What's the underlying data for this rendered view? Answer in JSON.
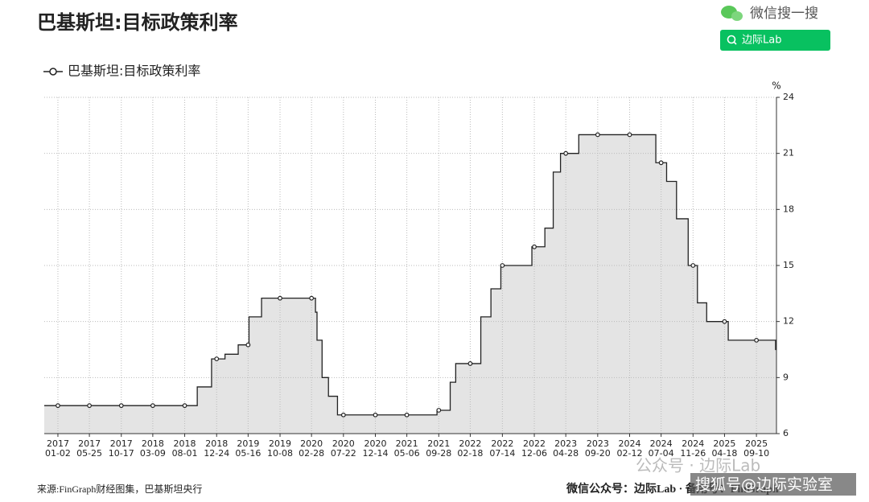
{
  "header": {
    "brand": "微信搜一搜",
    "search_button": "边际Lab"
  },
  "chart_data": {
    "type": "line",
    "step": true,
    "title": "巴基斯坦:目标政策利率",
    "y_unit_label": "%",
    "x": [
      "2016-11-01",
      "2018-09-27",
      "2018-12-01",
      "2019-01-31",
      "2019-04-01",
      "2019-05-20",
      "2019-07-16",
      "2020-03-17",
      "2020-03-24",
      "2020-04-16",
      "2020-05-15",
      "2020-06-25",
      "2021-09-20",
      "2021-11-19",
      "2021-12-14",
      "2022-04-07",
      "2022-05-23",
      "2022-07-07",
      "2022-11-25",
      "2023-01-23",
      "2023-03-02",
      "2023-04-04",
      "2023-06-26",
      "2024-06-10",
      "2024-07-29",
      "2024-09-12",
      "2024-11-04",
      "2024-12-16",
      "2025-01-27",
      "2025-05-05",
      "2025-12-06"
    ],
    "series": [
      {
        "name": "巴基斯坦:目标政策利率",
        "color": "#222222",
        "fill": "#e4e4e4",
        "values": [
          7.5,
          8.5,
          10,
          10.25,
          10.75,
          12.25,
          13.25,
          12.5,
          11,
          9,
          8,
          7,
          7.25,
          8.75,
          9.75,
          12.25,
          13.75,
          15,
          16,
          17,
          20,
          21,
          22,
          20.5,
          19.5,
          17.5,
          15,
          13,
          12,
          11,
          10.5
        ]
      }
    ],
    "xlim": [
      "2016-11-01",
      "2025-12-10"
    ],
    "xticks": [
      {
        "value": "2017-01-02",
        "label": [
          "2017",
          "01-02"
        ]
      },
      {
        "value": "2017-05-25",
        "label": [
          "2017",
          "05-25"
        ]
      },
      {
        "value": "2017-10-17",
        "label": [
          "2017",
          "10-17"
        ]
      },
      {
        "value": "2018-03-09",
        "label": [
          "2018",
          "03-09"
        ]
      },
      {
        "value": "2018-08-01",
        "label": [
          "2018",
          "08-01"
        ]
      },
      {
        "value": "2018-12-24",
        "label": [
          "2018",
          "12-24"
        ]
      },
      {
        "value": "2019-05-16",
        "label": [
          "2019",
          "05-16"
        ]
      },
      {
        "value": "2019-10-08",
        "label": [
          "2019",
          "10-08"
        ]
      },
      {
        "value": "2020-02-28",
        "label": [
          "2020",
          "02-28"
        ]
      },
      {
        "value": "2020-07-22",
        "label": [
          "2020",
          "07-22"
        ]
      },
      {
        "value": "2020-12-14",
        "label": [
          "2020",
          "12-14"
        ]
      },
      {
        "value": "2021-05-06",
        "label": [
          "2021",
          "05-06"
        ]
      },
      {
        "value": "2021-09-28",
        "label": [
          "2021",
          "09-28"
        ]
      },
      {
        "value": "2022-02-18",
        "label": [
          "2022",
          "02-18"
        ]
      },
      {
        "value": "2022-07-14",
        "label": [
          "2022",
          "07-14"
        ]
      },
      {
        "value": "2022-12-06",
        "label": [
          "2022",
          "12-06"
        ]
      },
      {
        "value": "2023-04-28",
        "label": [
          "2023",
          "04-28"
        ]
      },
      {
        "value": "2023-09-20",
        "label": [
          "2023",
          "09-20"
        ]
      },
      {
        "value": "2024-02-12",
        "label": [
          "2024",
          "02-12"
        ]
      },
      {
        "value": "2024-07-04",
        "label": [
          "2024",
          "07-04"
        ]
      },
      {
        "value": "2024-11-26",
        "label": [
          "2024",
          "11-26"
        ]
      },
      {
        "value": "2025-04-18",
        "label": [
          "2025",
          "04-18"
        ]
      },
      {
        "value": "2025-09-10",
        "label": [
          "2025",
          "09-10"
        ]
      }
    ],
    "ylim": [
      6,
      24
    ],
    "yticks": [
      6,
      9,
      12,
      15,
      18,
      21,
      24
    ],
    "grid": true,
    "y_axis_side": "right"
  },
  "footer": {
    "source": "来源:FinGraph财经图集，巴基斯坦央行",
    "account": "微信公众号：边际Lab · 备用号：FinGraph"
  },
  "watermarks": [
    "公众号 · 边际Lab",
    "搜狐号@边际实验室"
  ]
}
